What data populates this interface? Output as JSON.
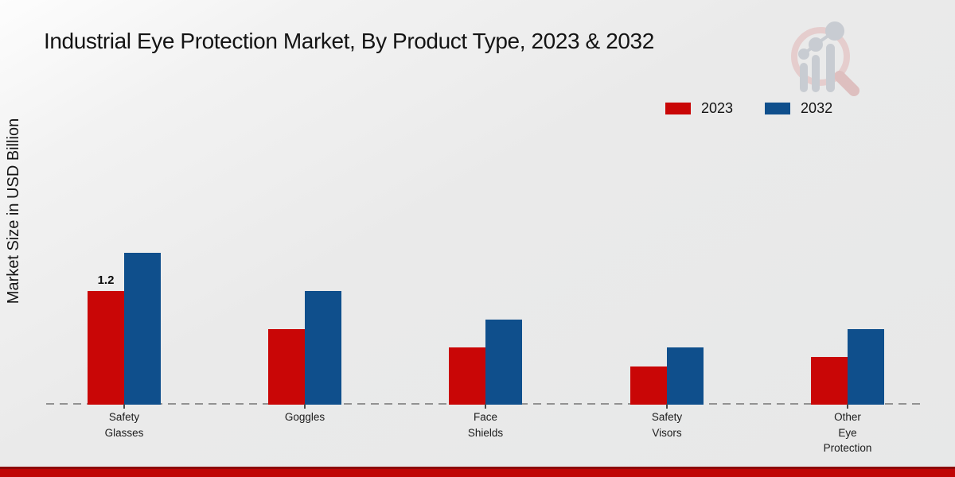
{
  "title": "Industrial Eye Protection Market, By Product Type, 2023 & 2032",
  "chart_data": {
    "type": "bar",
    "title": "Industrial Eye Protection Market, By Product Type, 2023 & 2032",
    "xlabel": "",
    "ylabel": "Market Size in USD Billion",
    "categories": [
      "Safety Glasses",
      "Goggles",
      "Face Shields",
      "Safety Visors",
      "Other Eye Protection"
    ],
    "category_label_lines": [
      [
        "Safety",
        "Glasses"
      ],
      [
        "Goggles"
      ],
      [
        "Face",
        "Shields"
      ],
      [
        "Safety",
        "Visors"
      ],
      [
        "Other",
        "Eye",
        "Protection"
      ]
    ],
    "series": [
      {
        "name": "2023",
        "color": "#c90606",
        "values": [
          1.2,
          0.8,
          0.6,
          0.4,
          0.5
        ]
      },
      {
        "name": "2032",
        "color": "#0f4f8c",
        "values": [
          1.6,
          1.2,
          0.9,
          0.6,
          0.8
        ]
      }
    ],
    "bar_labels": [
      {
        "series_index": 0,
        "category_index": 0,
        "text": "1.2"
      }
    ],
    "ylim": [
      0,
      2
    ],
    "grid": false,
    "axis_line_style": "dashed",
    "legend_position": "top-right"
  },
  "colors": {
    "series_2023": "#c90606",
    "series_2032": "#0f4f8c",
    "baseline_dash": "#929292",
    "footer_band": "#c00505",
    "footer_band_dark": "#8d0909",
    "background": "#eaeaea",
    "text": "#141414",
    "logo_ring": "#e5cbcb",
    "logo_bars": "#c6cad0"
  },
  "branding": {
    "logo_name": "magnifier-bar-chart-logo"
  }
}
